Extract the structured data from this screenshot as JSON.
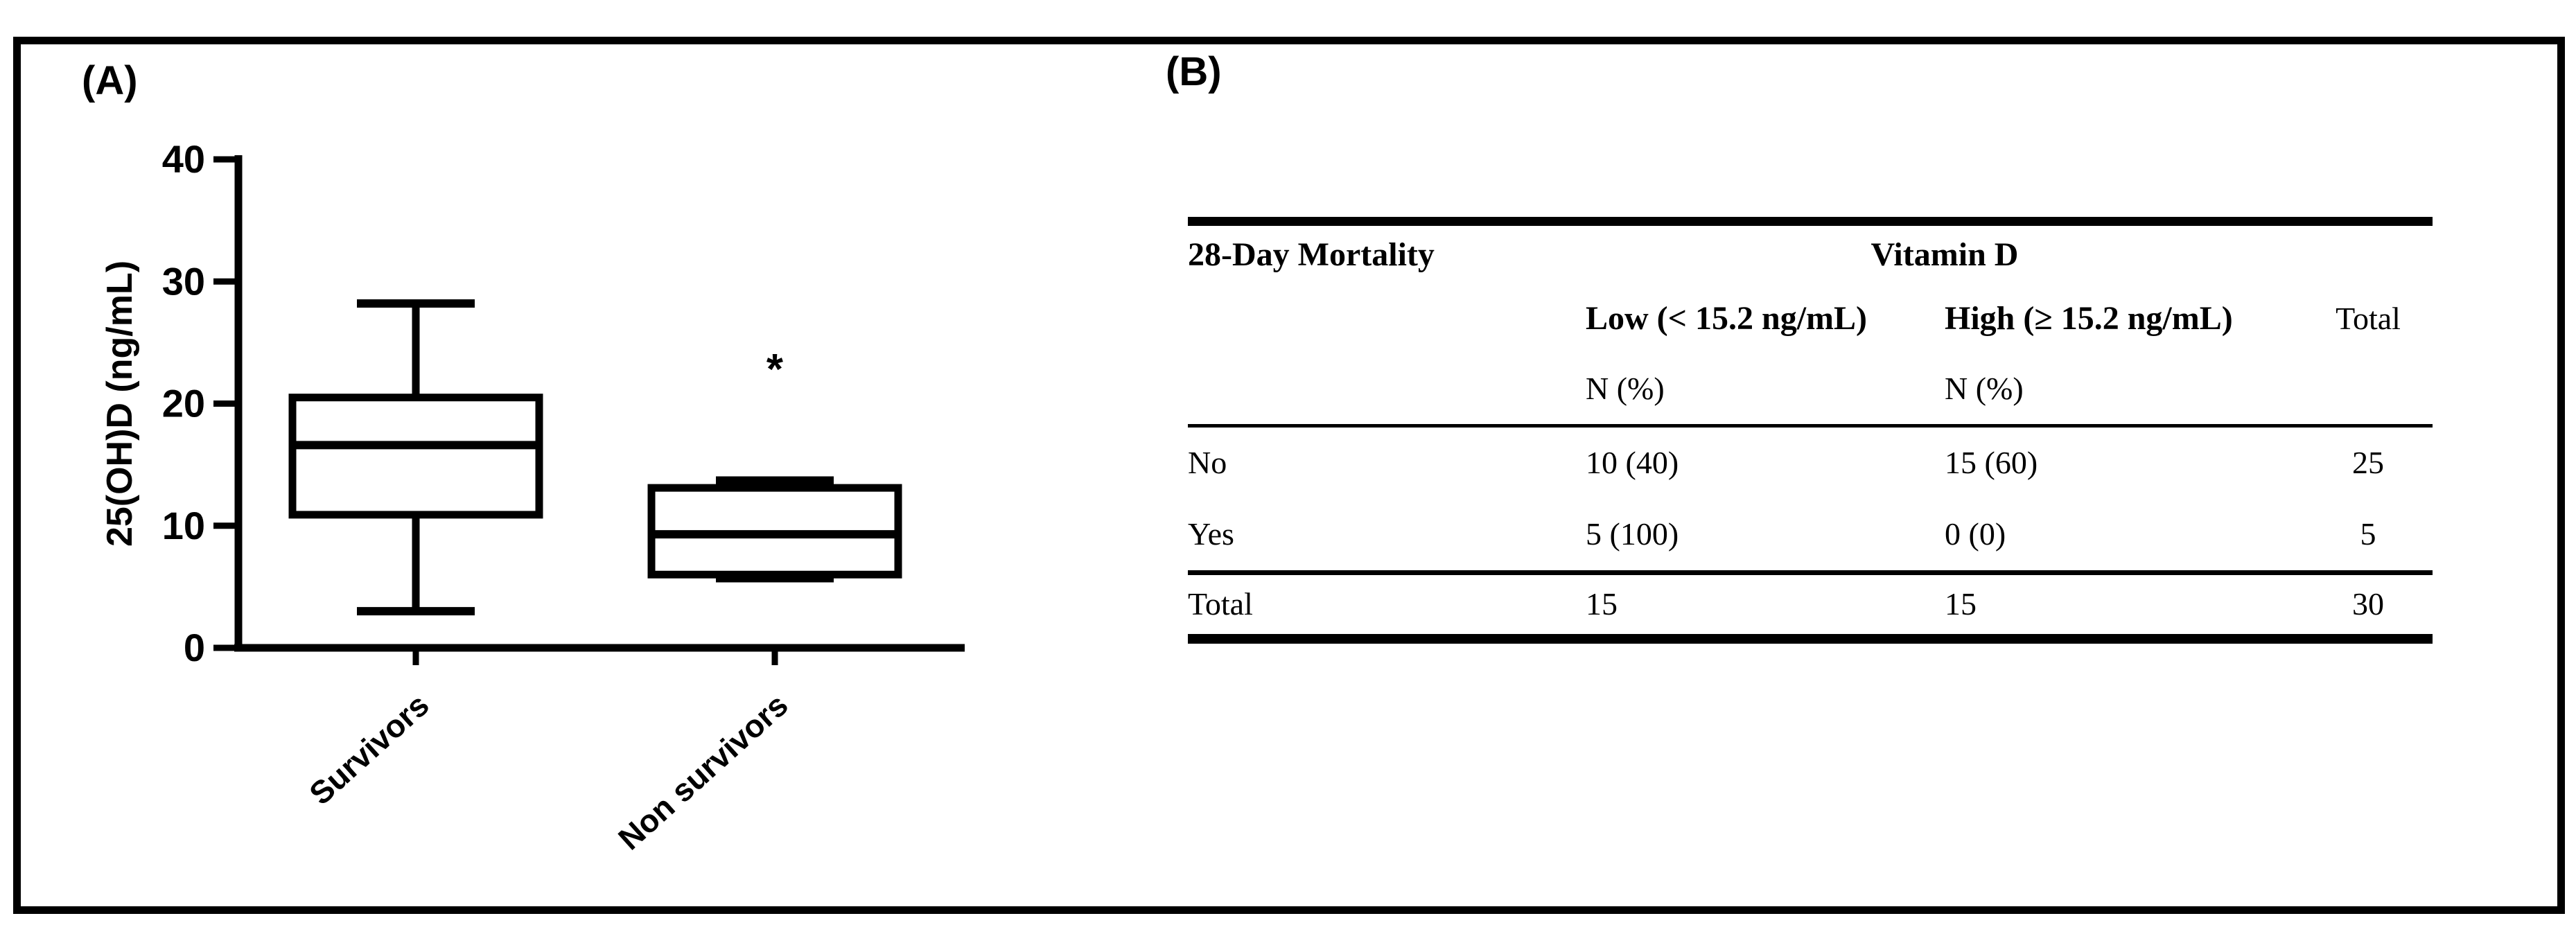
{
  "panels": {
    "a_label": "(A)",
    "b_label": "(B)"
  },
  "chart_data": {
    "type": "box",
    "title": "",
    "xlabel": "",
    "ylabel": "25(OH)D (ng/mL)",
    "ylim": [
      0,
      40
    ],
    "yticks": [
      0,
      10,
      20,
      30,
      40
    ],
    "grid": false,
    "legend": false,
    "categories": [
      "Survivors",
      "Non survivors"
    ],
    "series": [
      {
        "name": "Survivors",
        "whisker_low": 3.0,
        "q1": 10.9,
        "median": 16.6,
        "q3": 20.5,
        "whisker_high": 28.2
      },
      {
        "name": "Non survivors",
        "whisker_low": 5.7,
        "q1": 6.0,
        "median": 9.3,
        "q3": 13.1,
        "whisker_high": 13.7
      }
    ],
    "annotations": [
      {
        "text": "*",
        "category_index": 1,
        "value": 24
      }
    ]
  },
  "table": {
    "headers": {
      "row_label_header": "28-Day Mortality",
      "group_header": "Vitamin D",
      "col_low": "Low (< 15.2 ng/mL)",
      "col_high": "High (≥ 15.2 ng/mL)",
      "col_total": "Total",
      "unit_low": "N (%)",
      "unit_high": "N (%)"
    },
    "rows": [
      {
        "label": "No",
        "low": "10 (40)",
        "high": "15 (60)",
        "total": "25"
      },
      {
        "label": "Yes",
        "low": "5 (100)",
        "high": "0 (0)",
        "total": "5"
      },
      {
        "label": "Total",
        "low": "15",
        "high": "15",
        "total": "30"
      }
    ]
  },
  "colors": {
    "ink": "#000000",
    "background": "#ffffff"
  }
}
